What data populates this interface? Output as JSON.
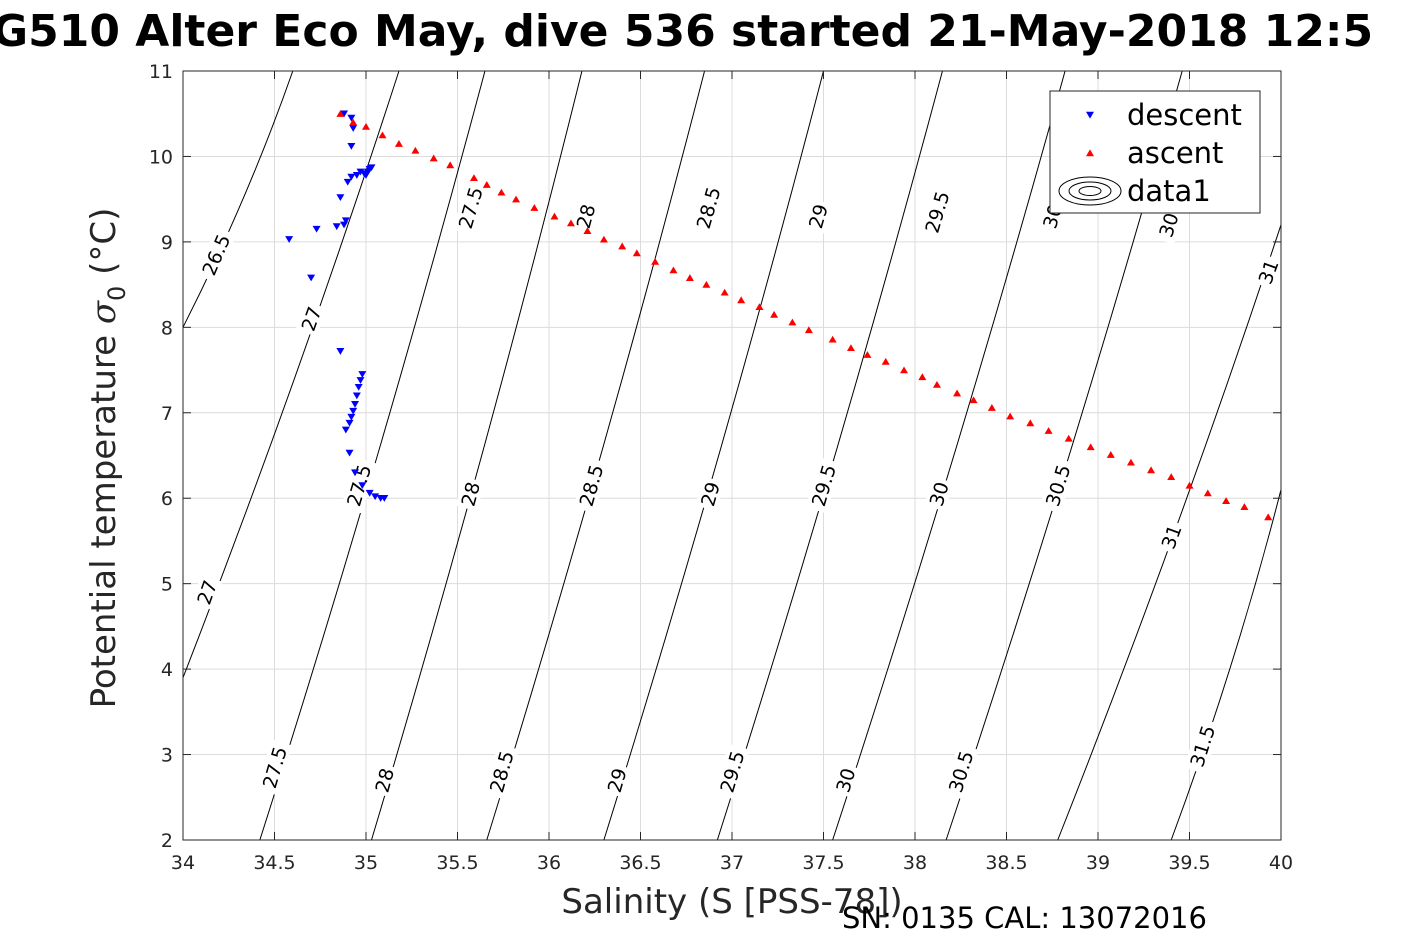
{
  "chart_data": {
    "type": "scatter",
    "title": "G510 Alter Eco May, dive 536 started 21-May-2018 12:5",
    "xlabel": "Salinity (S [PSS-78])",
    "ylabel_main": "Potential temperature ",
    "ylabel_sigma": "σ",
    "ylabel_sub": "0",
    "ylabel_unit": " (°C)",
    "xlim": [
      34,
      40
    ],
    "ylim": [
      2,
      11
    ],
    "xticks": [
      "34",
      "34.5",
      "35",
      "35.5",
      "36",
      "36.5",
      "37",
      "37.5",
      "38",
      "38.5",
      "39",
      "39.5",
      "40"
    ],
    "yticks": [
      "2",
      "3",
      "4",
      "5",
      "6",
      "7",
      "8",
      "9",
      "10",
      "11"
    ],
    "grid": true,
    "legend": {
      "position": "top-right",
      "entries": [
        "descent",
        "ascent",
        "data1"
      ]
    },
    "series": [
      {
        "name": "descent",
        "color": "#0000ff",
        "marker": "triangle-down",
        "x": [
          34.88,
          34.92,
          34.93,
          34.92,
          34.97,
          34.99,
          35.01,
          35.02,
          35.03,
          35.0,
          34.95,
          34.92,
          34.9,
          34.86,
          34.89,
          34.88,
          34.84,
          34.73,
          34.58,
          34.7,
          34.86,
          34.98,
          34.97,
          34.96,
          34.95,
          34.94,
          34.93,
          34.92,
          34.91,
          34.89,
          34.91,
          34.94,
          34.98,
          35.02,
          35.05,
          35.08,
          35.1
        ],
        "y": [
          10.5,
          10.45,
          10.33,
          10.12,
          9.82,
          9.8,
          9.82,
          9.85,
          9.87,
          9.78,
          9.78,
          9.76,
          9.7,
          9.52,
          9.25,
          9.2,
          9.18,
          9.15,
          9.03,
          8.58,
          7.72,
          7.45,
          7.38,
          7.3,
          7.2,
          7.1,
          7.02,
          6.95,
          6.88,
          6.8,
          6.53,
          6.3,
          6.15,
          6.06,
          6.02,
          6.0,
          6.0
        ]
      },
      {
        "name": "ascent",
        "color": "#ff0000",
        "marker": "triangle-up",
        "x": [
          34.86,
          34.93,
          35.0,
          35.09,
          35.18,
          35.27,
          35.37,
          35.46,
          35.59,
          35.66,
          35.74,
          35.82,
          35.92,
          36.03,
          36.12,
          36.21,
          36.3,
          36.4,
          36.48,
          36.58,
          36.68,
          36.77,
          36.86,
          36.96,
          37.05,
          37.15,
          37.23,
          37.33,
          37.42,
          37.55,
          37.65,
          37.74,
          37.84,
          37.94,
          38.04,
          38.12,
          38.23,
          38.32,
          38.42,
          38.52,
          38.63,
          38.73,
          38.84,
          38.96,
          39.07,
          39.18,
          39.29,
          39.4,
          39.5,
          39.6,
          39.7,
          39.8,
          39.93
        ],
        "y": [
          10.5,
          10.4,
          10.35,
          10.25,
          10.15,
          10.07,
          9.98,
          9.9,
          9.75,
          9.67,
          9.58,
          9.5,
          9.4,
          9.3,
          9.22,
          9.13,
          9.03,
          8.95,
          8.87,
          8.77,
          8.67,
          8.58,
          8.5,
          8.41,
          8.32,
          8.24,
          8.15,
          8.06,
          7.97,
          7.86,
          7.76,
          7.68,
          7.6,
          7.5,
          7.42,
          7.33,
          7.23,
          7.15,
          7.06,
          6.96,
          6.88,
          6.79,
          6.7,
          6.6,
          6.51,
          6.42,
          6.33,
          6.25,
          6.15,
          6.06,
          5.97,
          5.9,
          5.78
        ]
      }
    ],
    "contours": {
      "series_name": "data1",
      "color": "#000000",
      "levels": [
        {
          "value": 26.5,
          "points": [
            [
              34.6,
              11
            ],
            [
              34.0,
              8.0
            ]
          ],
          "labels": [
            {
              "text": "26.5",
              "at": [
                34.18,
                8.85
              ]
            }
          ]
        },
        {
          "value": 27.0,
          "points": [
            [
              35.18,
              11
            ],
            [
              34.0,
              3.9
            ]
          ],
          "labels": [
            {
              "text": "27",
              "at": [
                34.7,
                8.1
              ]
            },
            {
              "text": "27",
              "at": [
                34.13,
                4.9
              ]
            }
          ]
        },
        {
          "value": 27.5,
          "points": [
            [
              35.65,
              11
            ],
            [
              34.42,
              2.0
            ]
          ],
          "labels": [
            {
              "text": "27.5",
              "at": [
                35.57,
                9.4
              ]
            },
            {
              "text": "27.5",
              "at": [
                34.96,
                6.15
              ]
            },
            {
              "text": "27.5",
              "at": [
                34.5,
                2.85
              ]
            }
          ]
        },
        {
          "value": 28.0,
          "points": [
            [
              36.18,
              11
            ],
            [
              35.03,
              2.0
            ]
          ],
          "labels": [
            {
              "text": "28",
              "at": [
                36.2,
                9.3
              ]
            },
            {
              "text": "28",
              "at": [
                35.57,
                6.05
              ]
            },
            {
              "text": "28",
              "at": [
                35.1,
                2.7
              ]
            }
          ]
        },
        {
          "value": 28.5,
          "points": [
            [
              36.85,
              11
            ],
            [
              35.66,
              2.0
            ]
          ],
          "labels": [
            {
              "text": "28.5",
              "at": [
                36.87,
                9.4
              ]
            },
            {
              "text": "28.5",
              "at": [
                36.23,
                6.15
              ]
            },
            {
              "text": "28.5",
              "at": [
                35.74,
                2.8
              ]
            }
          ]
        },
        {
          "value": 29.0,
          "points": [
            [
              37.5,
              11
            ],
            [
              36.3,
              2.0
            ]
          ],
          "labels": [
            {
              "text": "29",
              "at": [
                37.47,
                9.3
              ]
            },
            {
              "text": "29",
              "at": [
                36.88,
                6.05
              ]
            },
            {
              "text": "29",
              "at": [
                36.37,
                2.7
              ]
            }
          ]
        },
        {
          "value": 29.5,
          "points": [
            [
              38.15,
              11
            ],
            [
              36.92,
              2.0
            ]
          ],
          "labels": [
            {
              "text": "29.5",
              "at": [
                38.12,
                9.35
              ]
            },
            {
              "text": "29.5",
              "at": [
                37.5,
                6.15
              ]
            },
            {
              "text": "29.5",
              "at": [
                37.0,
                2.8
              ]
            }
          ]
        },
        {
          "value": 30.0,
          "points": [
            [
              38.82,
              11
            ],
            [
              37.55,
              2.0
            ]
          ],
          "labels": [
            {
              "text": "30",
              "at": [
                38.75,
                9.3
              ]
            },
            {
              "text": "30",
              "at": [
                38.13,
                6.05
              ]
            },
            {
              "text": "30",
              "at": [
                37.62,
                2.7
              ]
            }
          ]
        },
        {
          "value": 30.5,
          "points": [
            [
              39.46,
              11
            ],
            [
              38.17,
              2.0
            ]
          ],
          "labels": [
            {
              "text": "30.5",
              "at": [
                39.4,
                9.3
              ]
            },
            {
              "text": "30.5",
              "at": [
                38.78,
                6.15
              ]
            },
            {
              "text": "30.5",
              "at": [
                38.25,
                2.8
              ]
            }
          ]
        },
        {
          "value": 31.0,
          "points": [
            [
              40.0,
              9.2
            ],
            [
              38.78,
              2.0
            ]
          ],
          "labels": [
            {
              "text": "31",
              "at": [
                39.93,
                8.65
              ]
            },
            {
              "text": "31",
              "at": [
                39.4,
                5.55
              ]
            }
          ]
        },
        {
          "value": 31.5,
          "points": [
            [
              40.0,
              6.1
            ],
            [
              39.4,
              2.0
            ]
          ],
          "labels": [
            {
              "text": "31.5",
              "at": [
                39.57,
                3.1
              ]
            }
          ]
        }
      ]
    },
    "annotation": "SN: 0135  CAL: 13072016"
  }
}
